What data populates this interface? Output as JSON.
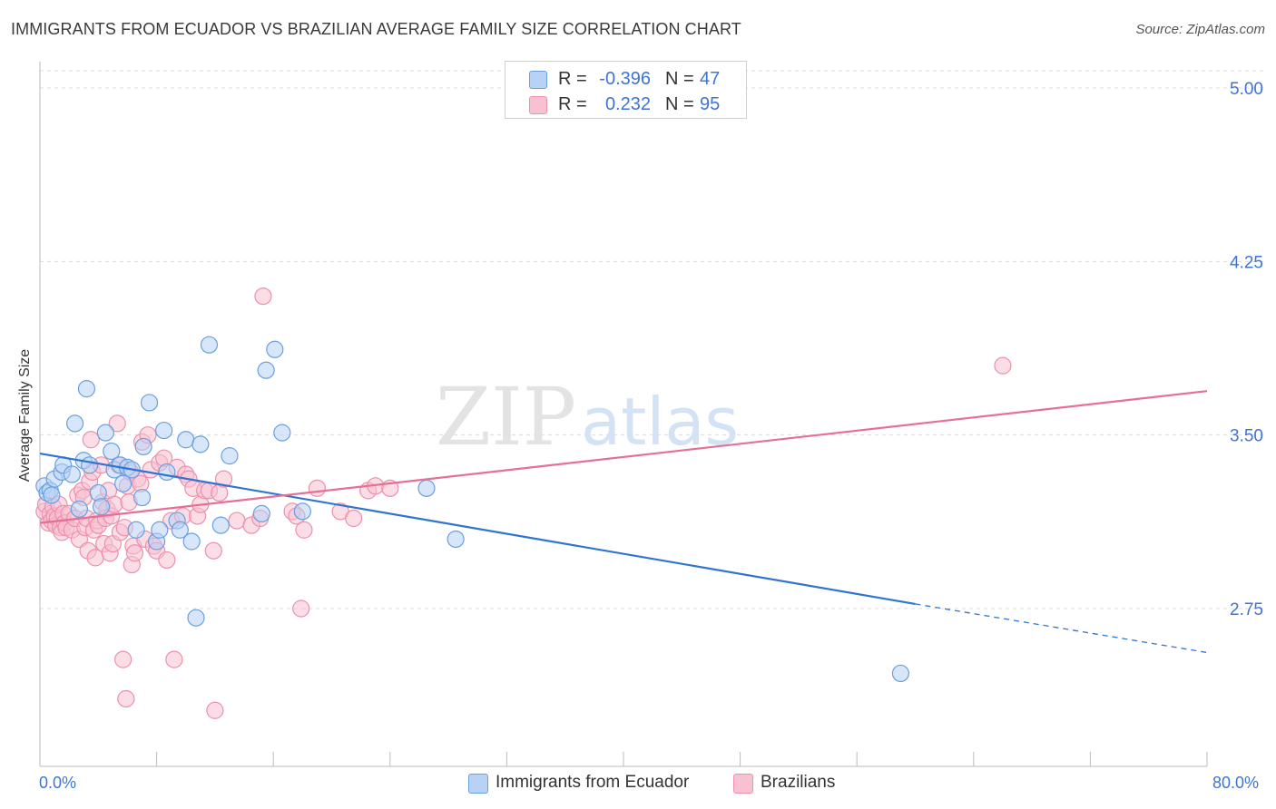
{
  "title": "IMMIGRANTS FROM ECUADOR VS BRAZILIAN AVERAGE FAMILY SIZE CORRELATION CHART",
  "source": "Source: ZipAtlas.com",
  "watermark": {
    "zip": "ZIP",
    "atlas": "atlas"
  },
  "legend": {
    "rows": [
      {
        "r_label": "R =",
        "r_value": "-0.396",
        "n_label": "N =",
        "n_value": "47",
        "color": "#a9c8f0"
      },
      {
        "r_label": "R =",
        "r_value": "0.232",
        "n_label": "N =",
        "n_value": "95",
        "color": "#f6b7cb"
      }
    ]
  },
  "bottom_legend": {
    "ecuador": "Immigrants from Ecuador",
    "brazilians": "Brazilians"
  },
  "x_axis": {
    "min_label": "0.0%",
    "max_label": "80.0%"
  },
  "y_axis": {
    "label": "Average Family Size"
  },
  "chart_data": {
    "type": "scatter",
    "title": "IMMIGRANTS FROM ECUADOR VS BRAZILIAN AVERAGE FAMILY SIZE CORRELATION CHART",
    "xlabel": "",
    "ylabel": "Average Family Size",
    "xlim": [
      0,
      80
    ],
    "ylim": [
      2.0,
      5.1
    ],
    "yticks": [
      2.75,
      3.5,
      4.25,
      5.0
    ],
    "ytick_labels": [
      "2.75",
      "3.50",
      "4.25",
      "5.00"
    ],
    "grid": true,
    "legend_position": "top-center",
    "series": [
      {
        "name": "Immigrants from Ecuador",
        "color": "#6a9fe0",
        "fill": "#b7d2f4",
        "line_color": "#2f74d0",
        "trend": {
          "x0": 0,
          "y0": 3.42,
          "x1": 60,
          "y1": 2.77,
          "dash_to_x": 80,
          "dash_to_y": 2.56
        },
        "points": [
          [
            0.3,
            3.28
          ],
          [
            0.5,
            3.25
          ],
          [
            0.7,
            3.26
          ],
          [
            0.8,
            3.24
          ],
          [
            1.0,
            3.31
          ],
          [
            1.5,
            3.34
          ],
          [
            1.6,
            3.37
          ],
          [
            2.2,
            3.33
          ],
          [
            2.4,
            3.55
          ],
          [
            2.7,
            3.18
          ],
          [
            3.0,
            3.39
          ],
          [
            3.2,
            3.7
          ],
          [
            3.4,
            3.37
          ],
          [
            4.0,
            3.25
          ],
          [
            4.2,
            3.19
          ],
          [
            4.5,
            3.51
          ],
          [
            4.9,
            3.43
          ],
          [
            5.1,
            3.35
          ],
          [
            5.5,
            3.37
          ],
          [
            5.7,
            3.29
          ],
          [
            6.0,
            3.36
          ],
          [
            6.3,
            3.35
          ],
          [
            6.6,
            3.09
          ],
          [
            7.0,
            3.23
          ],
          [
            7.1,
            3.45
          ],
          [
            7.5,
            3.64
          ],
          [
            8.0,
            3.04
          ],
          [
            8.2,
            3.09
          ],
          [
            8.5,
            3.52
          ],
          [
            8.7,
            3.34
          ],
          [
            9.4,
            3.13
          ],
          [
            9.6,
            3.09
          ],
          [
            10.0,
            3.48
          ],
          [
            10.4,
            3.04
          ],
          [
            10.7,
            2.71
          ],
          [
            11.0,
            3.46
          ],
          [
            11.6,
            3.89
          ],
          [
            12.4,
            3.11
          ],
          [
            13.0,
            3.41
          ],
          [
            15.2,
            3.16
          ],
          [
            15.5,
            3.78
          ],
          [
            16.1,
            3.87
          ],
          [
            16.6,
            3.51
          ],
          [
            18.0,
            3.17
          ],
          [
            26.5,
            3.27
          ],
          [
            28.5,
            3.05
          ],
          [
            59.0,
            2.47
          ]
        ]
      },
      {
        "name": "Brazilians",
        "color": "#ee8fad",
        "fill": "#f7c1d2",
        "line_color": "#e56f96",
        "trend": {
          "x0": 0,
          "y0": 3.12,
          "x1": 80,
          "y1": 3.69
        },
        "points": [
          [
            0.3,
            3.17
          ],
          [
            0.4,
            3.2
          ],
          [
            0.6,
            3.12
          ],
          [
            0.7,
            3.16
          ],
          [
            0.8,
            3.13
          ],
          [
            0.9,
            3.19
          ],
          [
            1.0,
            3.15
          ],
          [
            1.1,
            3.11
          ],
          [
            1.2,
            3.14
          ],
          [
            1.3,
            3.2
          ],
          [
            1.4,
            3.1
          ],
          [
            1.5,
            3.08
          ],
          [
            1.6,
            3.16
          ],
          [
            1.7,
            3.12
          ],
          [
            1.8,
            3.1
          ],
          [
            2.0,
            3.16
          ],
          [
            2.2,
            3.09
          ],
          [
            2.4,
            3.14
          ],
          [
            2.6,
            3.24
          ],
          [
            2.7,
            3.05
          ],
          [
            2.9,
            3.26
          ],
          [
            3.0,
            3.23
          ],
          [
            3.1,
            3.1
          ],
          [
            3.2,
            3.14
          ],
          [
            3.3,
            3.0
          ],
          [
            3.4,
            3.3
          ],
          [
            3.5,
            3.48
          ],
          [
            3.6,
            3.34
          ],
          [
            3.7,
            3.09
          ],
          [
            3.8,
            2.97
          ],
          [
            3.9,
            3.13
          ],
          [
            4.0,
            3.11
          ],
          [
            4.2,
            3.37
          ],
          [
            4.3,
            3.21
          ],
          [
            4.4,
            3.03
          ],
          [
            4.5,
            3.14
          ],
          [
            4.6,
            3.18
          ],
          [
            4.7,
            3.26
          ],
          [
            4.8,
            2.99
          ],
          [
            4.9,
            3.15
          ],
          [
            5.0,
            3.03
          ],
          [
            5.1,
            3.2
          ],
          [
            5.3,
            3.55
          ],
          [
            5.4,
            3.37
          ],
          [
            5.5,
            3.08
          ],
          [
            5.7,
            2.53
          ],
          [
            5.8,
            3.1
          ],
          [
            5.9,
            2.36
          ],
          [
            6.0,
            3.28
          ],
          [
            6.1,
            3.21
          ],
          [
            6.2,
            3.34
          ],
          [
            6.3,
            2.94
          ],
          [
            6.4,
            3.02
          ],
          [
            6.5,
            2.99
          ],
          [
            6.7,
            3.31
          ],
          [
            6.9,
            3.29
          ],
          [
            7.0,
            3.47
          ],
          [
            7.2,
            3.05
          ],
          [
            7.4,
            3.5
          ],
          [
            7.6,
            3.35
          ],
          [
            7.8,
            3.02
          ],
          [
            8.0,
            3.0
          ],
          [
            8.2,
            3.38
          ],
          [
            8.5,
            3.4
          ],
          [
            8.7,
            2.96
          ],
          [
            9.0,
            3.13
          ],
          [
            9.2,
            2.53
          ],
          [
            9.4,
            3.36
          ],
          [
            9.8,
            3.15
          ],
          [
            10.0,
            3.33
          ],
          [
            10.2,
            3.31
          ],
          [
            10.5,
            3.27
          ],
          [
            10.8,
            3.15
          ],
          [
            11.0,
            3.2
          ],
          [
            11.3,
            3.26
          ],
          [
            11.6,
            3.26
          ],
          [
            11.9,
            3.0
          ],
          [
            12.0,
            2.31
          ],
          [
            12.3,
            3.25
          ],
          [
            12.6,
            3.31
          ],
          [
            13.5,
            3.13
          ],
          [
            14.5,
            3.11
          ],
          [
            15.1,
            3.14
          ],
          [
            15.3,
            4.1
          ],
          [
            17.3,
            3.17
          ],
          [
            17.6,
            3.15
          ],
          [
            17.9,
            2.75
          ],
          [
            18.1,
            3.09
          ],
          [
            19.0,
            3.27
          ],
          [
            20.6,
            3.17
          ],
          [
            21.5,
            3.14
          ],
          [
            22.5,
            3.26
          ],
          [
            23.0,
            3.28
          ],
          [
            24.0,
            3.27
          ],
          [
            66.0,
            3.8
          ]
        ]
      }
    ]
  }
}
